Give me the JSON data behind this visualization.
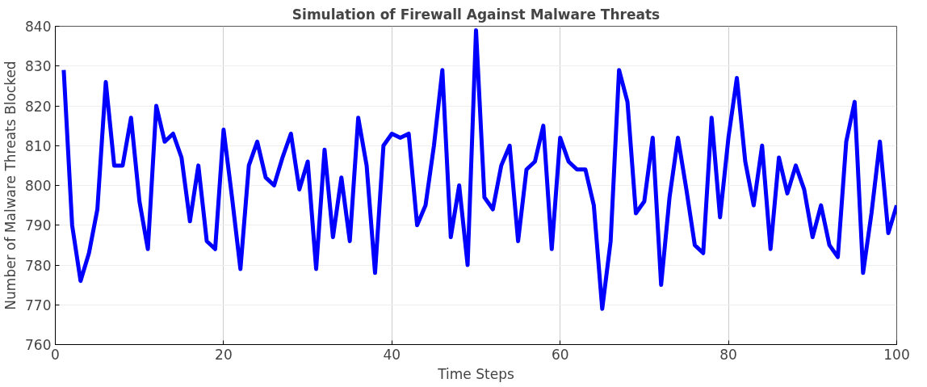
{
  "chart_data": {
    "type": "line",
    "title": "Simulation of Firewall Against Malware Threats",
    "xlabel": "Time Steps",
    "ylabel": "Number of Malware Threats Blocked",
    "x": [
      1,
      2,
      3,
      4,
      5,
      6,
      7,
      8,
      9,
      10,
      11,
      12,
      13,
      14,
      15,
      16,
      17,
      18,
      19,
      20,
      21,
      22,
      23,
      24,
      25,
      26,
      27,
      28,
      29,
      30,
      31,
      32,
      33,
      34,
      35,
      36,
      37,
      38,
      39,
      40,
      41,
      42,
      43,
      44,
      45,
      46,
      47,
      48,
      49,
      50,
      51,
      52,
      53,
      54,
      55,
      56,
      57,
      58,
      59,
      60,
      61,
      62,
      63,
      64,
      65,
      66,
      67,
      68,
      69,
      70,
      71,
      72,
      73,
      74,
      75,
      76,
      77,
      78,
      79,
      80,
      81,
      82,
      83,
      84,
      85,
      86,
      87,
      88,
      89,
      90,
      91,
      92,
      93,
      94,
      95,
      96,
      97,
      98,
      99,
      100
    ],
    "series": [
      {
        "color": "#0000ff",
        "values": [
          829,
          790,
          776,
          783,
          794,
          826,
          805,
          805,
          817,
          796,
          784,
          820,
          811,
          813,
          807,
          791,
          805,
          786,
          784,
          814,
          797,
          779,
          805,
          811,
          802,
          800,
          807,
          813,
          799,
          806,
          779,
          809,
          787,
          802,
          786,
          817,
          805,
          778,
          810,
          813,
          812,
          813,
          790,
          795,
          810,
          829,
          787,
          800,
          780,
          839,
          797,
          794,
          805,
          810,
          786,
          804,
          806,
          815,
          784,
          812,
          806,
          804,
          804,
          795,
          769,
          786,
          829,
          821,
          793,
          796,
          812,
          775,
          797,
          812,
          799,
          785,
          783,
          817,
          792,
          812,
          827,
          806,
          795,
          810,
          784,
          807,
          798,
          805,
          799,
          787,
          795,
          785,
          782,
          811,
          821,
          778,
          793,
          811,
          788,
          795
        ]
      }
    ],
    "xlim": [
      0,
      100
    ],
    "ylim": [
      760,
      840
    ],
    "xticks": [
      0,
      20,
      40,
      60,
      80,
      100
    ],
    "yticks": [
      760,
      770,
      780,
      790,
      800,
      810,
      820,
      830,
      840
    ],
    "grid": true,
    "line_style": "solid",
    "marker": "none"
  }
}
